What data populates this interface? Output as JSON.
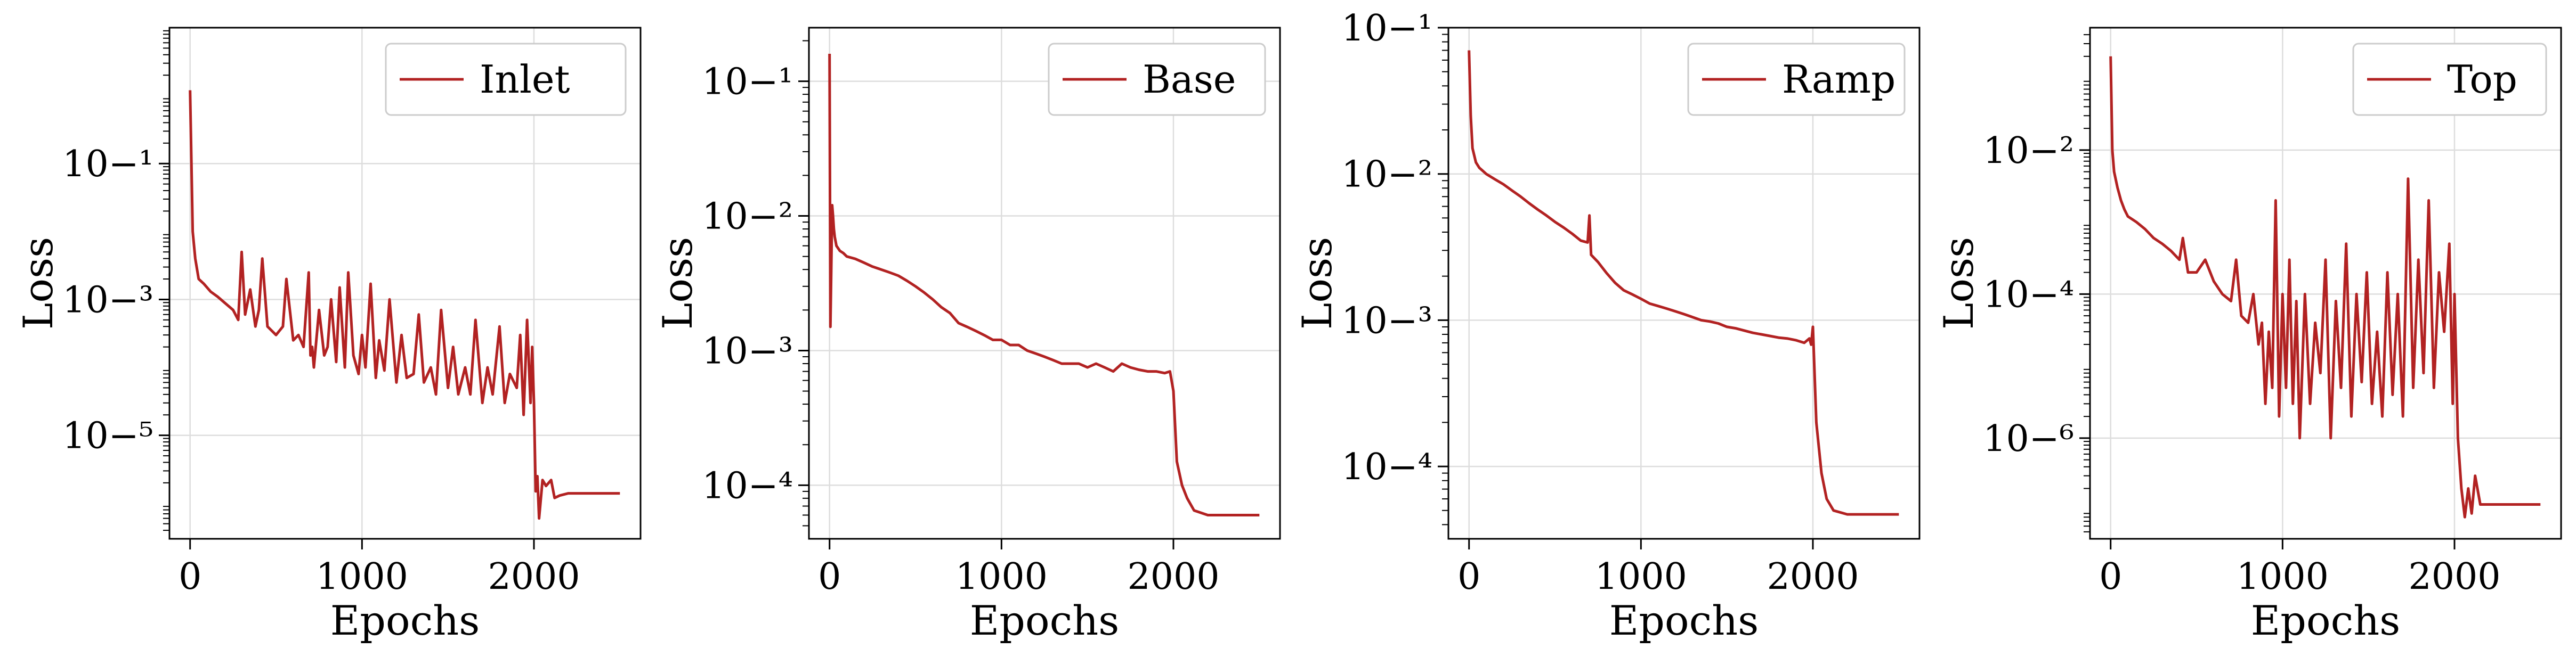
{
  "figure": {
    "background": "#ffffff",
    "grid_color": "#dddddd",
    "line_color": "#b22222"
  },
  "chart_data": [
    {
      "type": "line",
      "xlabel": "Epochs",
      "ylabel": "Loss",
      "yscale": "log",
      "grid": true,
      "legend_position": "top-right",
      "xlim": [
        -120,
        2620
      ],
      "ylim": [
        3e-07,
        10
      ],
      "xticks": [
        0,
        1000,
        2000
      ],
      "yticks": [
        1e-05,
        0.001,
        0.1
      ],
      "series": [
        {
          "name": "Inlet",
          "color": "#b22222",
          "x": [
            0,
            15,
            30,
            50,
            80,
            120,
            160,
            200,
            250,
            280,
            300,
            320,
            350,
            380,
            400,
            420,
            450,
            500,
            540,
            560,
            600,
            630,
            660,
            690,
            700,
            710,
            720,
            750,
            780,
            800,
            820,
            850,
            870,
            900,
            920,
            950,
            980,
            1000,
            1020,
            1050,
            1080,
            1100,
            1130,
            1160,
            1200,
            1230,
            1260,
            1300,
            1330,
            1360,
            1400,
            1430,
            1460,
            1500,
            1530,
            1560,
            1600,
            1630,
            1660,
            1700,
            1730,
            1760,
            1800,
            1830,
            1860,
            1900,
            1920,
            1940,
            1960,
            1980,
            1990,
            2000,
            2010,
            2020,
            2030,
            2050,
            2070,
            2100,
            2120,
            2150,
            2200,
            2300,
            2400,
            2500
          ],
          "y": [
            1.2,
            0.01,
            0.004,
            0.002,
            0.0017,
            0.0013,
            0.0011,
            0.0009,
            0.0007,
            0.0005,
            0.005,
            0.0006,
            0.0014,
            0.0004,
            0.0007,
            0.004,
            0.0004,
            0.0003,
            0.0004,
            0.002,
            0.00025,
            0.0003,
            0.0002,
            0.0025,
            0.00015,
            0.0002,
            0.0001,
            0.0007,
            0.00015,
            0.0002,
            0.001,
            0.00012,
            0.0015,
            0.0001,
            0.0025,
            0.00015,
            8e-05,
            0.0003,
            0.0001,
            0.0017,
            7e-05,
            0.00025,
            9e-05,
            0.001,
            6e-05,
            0.0003,
            7e-05,
            8e-05,
            0.0006,
            6e-05,
            0.0001,
            4e-05,
            0.0007,
            5e-05,
            0.0002,
            4e-05,
            0.0001,
            4e-05,
            0.0005,
            3e-05,
            0.0001,
            4e-05,
            0.0004,
            3e-05,
            8e-05,
            5e-05,
            0.0003,
            2e-05,
            0.0005,
            3e-05,
            0.0002,
            3e-05,
            1.5e-06,
            2.5e-06,
            6e-07,
            2.2e-06,
            1.8e-06,
            2.2e-06,
            1.2e-06,
            1.3e-06,
            1.4e-06,
            1.4e-06,
            1.4e-06,
            1.4e-06
          ]
        }
      ]
    },
    {
      "type": "line",
      "xlabel": "Epochs",
      "ylabel": "Loss",
      "yscale": "log",
      "grid": true,
      "legend_position": "top-right",
      "xlim": [
        -120,
        2620
      ],
      "ylim": [
        4e-05,
        0.25
      ],
      "xticks": [
        0,
        1000,
        2000
      ],
      "yticks": [
        0.0001,
        0.001,
        0.01,
        0.1
      ],
      "series": [
        {
          "name": "Base",
          "color": "#b22222",
          "x": [
            0,
            5,
            10,
            15,
            20,
            25,
            30,
            40,
            60,
            80,
            100,
            150,
            200,
            250,
            300,
            350,
            400,
            450,
            500,
            550,
            600,
            650,
            700,
            750,
            800,
            850,
            900,
            950,
            1000,
            1050,
            1100,
            1150,
            1200,
            1250,
            1300,
            1350,
            1400,
            1450,
            1500,
            1550,
            1600,
            1650,
            1700,
            1750,
            1800,
            1850,
            1900,
            1950,
            1980,
            2000,
            2020,
            2050,
            2080,
            2120,
            2200,
            2300,
            2400,
            2500
          ],
          "y": [
            0.16,
            0.0015,
            0.004,
            0.012,
            0.01,
            0.008,
            0.007,
            0.006,
            0.0055,
            0.0053,
            0.005,
            0.0048,
            0.0045,
            0.0042,
            0.004,
            0.0038,
            0.0036,
            0.0033,
            0.003,
            0.0027,
            0.0024,
            0.0021,
            0.0019,
            0.0016,
            0.0015,
            0.0014,
            0.0013,
            0.0012,
            0.0012,
            0.0011,
            0.0011,
            0.001,
            0.00095,
            0.0009,
            0.00085,
            0.0008,
            0.0008,
            0.0008,
            0.00075,
            0.0008,
            0.00075,
            0.0007,
            0.0008,
            0.00075,
            0.00072,
            0.0007,
            0.0007,
            0.00068,
            0.0007,
            0.0005,
            0.00015,
            0.0001,
            8e-05,
            6.5e-05,
            6e-05,
            6e-05,
            6e-05,
            6e-05
          ]
        }
      ]
    },
    {
      "type": "line",
      "xlabel": "Epochs",
      "ylabel": "Loss",
      "yscale": "log",
      "grid": true,
      "legend_position": "top-right",
      "xlim": [
        -120,
        2620
      ],
      "ylim": [
        3.2e-05,
        0.1
      ],
      "xticks": [
        0,
        1000,
        2000
      ],
      "yticks": [
        0.0001,
        0.001,
        0.01,
        0.1
      ],
      "series": [
        {
          "name": "Ramp",
          "color": "#b22222",
          "x": [
            0,
            10,
            20,
            40,
            60,
            80,
            100,
            150,
            200,
            250,
            300,
            350,
            400,
            450,
            500,
            550,
            600,
            650,
            690,
            700,
            710,
            750,
            800,
            850,
            900,
            950,
            1000,
            1050,
            1100,
            1150,
            1200,
            1250,
            1300,
            1350,
            1400,
            1450,
            1500,
            1550,
            1600,
            1650,
            1700,
            1750,
            1800,
            1850,
            1900,
            1950,
            1980,
            1990,
            2000,
            2020,
            2050,
            2080,
            2120,
            2200,
            2300,
            2400,
            2500
          ],
          "y": [
            0.07,
            0.025,
            0.015,
            0.012,
            0.011,
            0.0105,
            0.01,
            0.0092,
            0.0085,
            0.0077,
            0.007,
            0.0063,
            0.0057,
            0.0052,
            0.0047,
            0.0043,
            0.0039,
            0.0035,
            0.0034,
            0.0052,
            0.0028,
            0.0025,
            0.0021,
            0.0018,
            0.0016,
            0.0015,
            0.0014,
            0.0013,
            0.00125,
            0.0012,
            0.00115,
            0.0011,
            0.00105,
            0.001,
            0.00098,
            0.00095,
            0.0009,
            0.00088,
            0.00085,
            0.00082,
            0.0008,
            0.00078,
            0.00076,
            0.00075,
            0.00073,
            0.0007,
            0.00075,
            0.00068,
            0.0009,
            0.0002,
            9e-05,
            6e-05,
            5e-05,
            4.7e-05,
            4.7e-05,
            4.7e-05,
            4.7e-05
          ]
        }
      ]
    },
    {
      "type": "line",
      "xlabel": "Epochs",
      "ylabel": "Loss",
      "yscale": "log",
      "grid": true,
      "legend_position": "top-right",
      "xlim": [
        -120,
        2620
      ],
      "ylim": [
        4e-08,
        0.5
      ],
      "xticks": [
        0,
        1000,
        2000
      ],
      "yticks": [
        1e-06,
        0.0001,
        0.01
      ],
      "series": [
        {
          "name": "Top",
          "color": "#b22222",
          "x": [
            0,
            10,
            20,
            40,
            60,
            80,
            100,
            150,
            200,
            250,
            300,
            350,
            400,
            420,
            450,
            500,
            550,
            600,
            650,
            700,
            730,
            760,
            800,
            830,
            860,
            880,
            900,
            920,
            940,
            960,
            980,
            1000,
            1020,
            1040,
            1060,
            1080,
            1100,
            1130,
            1160,
            1190,
            1220,
            1250,
            1280,
            1310,
            1340,
            1370,
            1400,
            1430,
            1460,
            1490,
            1520,
            1550,
            1580,
            1610,
            1640,
            1670,
            1700,
            1730,
            1760,
            1790,
            1820,
            1850,
            1880,
            1910,
            1940,
            1970,
            1990,
            2000,
            2020,
            2040,
            2060,
            2080,
            2100,
            2120,
            2150,
            2200,
            2300,
            2400,
            2500
          ],
          "y": [
            0.2,
            0.01,
            0.005,
            0.003,
            0.002,
            0.0015,
            0.0012,
            0.001,
            0.0008,
            0.0006,
            0.0005,
            0.0004,
            0.0003,
            0.0006,
            0.0002,
            0.0002,
            0.0003,
            0.00015,
            0.0001,
            8e-05,
            0.0003,
            5e-05,
            4e-05,
            0.0001,
            2e-05,
            4e-05,
            3e-06,
            3e-05,
            5e-06,
            0.002,
            2e-06,
            0.0001,
            5e-06,
            0.0003,
            3e-06,
            8e-05,
            1e-06,
            0.0001,
            3e-06,
            4e-05,
            8e-06,
            0.0003,
            1e-06,
            8e-05,
            5e-06,
            0.0005,
            2e-06,
            0.0001,
            6e-06,
            0.0002,
            3e-06,
            3e-05,
            2e-06,
            0.0002,
            4e-06,
            0.0001,
            2e-06,
            0.004,
            5e-06,
            0.0003,
            8e-06,
            0.002,
            5e-06,
            0.0002,
            3e-05,
            0.0005,
            3e-06,
            0.0001,
            1e-06,
            2e-07,
            8e-08,
            2e-07,
            9e-08,
            3e-07,
            1.2e-07,
            1.2e-07,
            1.2e-07,
            1.2e-07,
            1.2e-07
          ]
        }
      ]
    }
  ]
}
